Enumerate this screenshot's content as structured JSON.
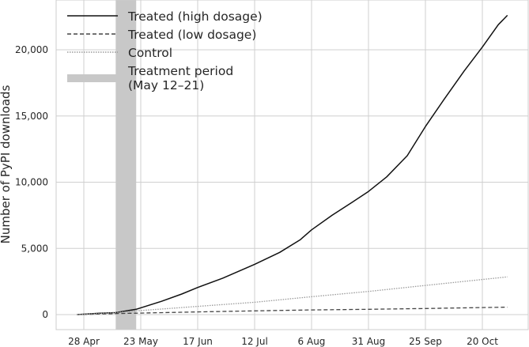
{
  "chart_data": {
    "type": "line",
    "ylabel": "Number of PyPI downloads",
    "xlabel": "",
    "x_ticks": [
      "28 Apr",
      "23 May",
      "17 Jun",
      "12 Jul",
      "6 Aug",
      "31 Aug",
      "25 Sep",
      "20 Oct"
    ],
    "y_ticks": [
      "0",
      "5,000",
      "10,000",
      "15,000",
      "20,000"
    ],
    "ylim": [
      -1100,
      23600
    ],
    "grid": true,
    "legend_position": "top-left",
    "treatment_period": {
      "label_line1": "Treatment period",
      "label_line2": "(May 12–21)",
      "start": "2023-05-12",
      "end": "2023-05-21",
      "color": "#c8c8c8"
    },
    "series": [
      {
        "name": "Treated (high dosage)",
        "style": "solid",
        "color": "#111111",
        "points": [
          [
            "2023-04-25",
            0
          ],
          [
            "2023-05-05",
            100
          ],
          [
            "2023-05-12",
            150
          ],
          [
            "2023-05-21",
            400
          ],
          [
            "2023-06-01",
            1000
          ],
          [
            "2023-06-10",
            1550
          ],
          [
            "2023-06-17",
            2050
          ],
          [
            "2023-06-28",
            2750
          ],
          [
            "2023-07-12",
            3800
          ],
          [
            "2023-07-23",
            4700
          ],
          [
            "2023-08-01",
            5650
          ],
          [
            "2023-08-06",
            6400
          ],
          [
            "2023-08-15",
            7500
          ],
          [
            "2023-08-24",
            8500
          ],
          [
            "2023-08-31",
            9300
          ],
          [
            "2023-09-08",
            10400
          ],
          [
            "2023-09-17",
            12000
          ],
          [
            "2023-09-25",
            14200
          ],
          [
            "2023-10-03",
            16200
          ],
          [
            "2023-10-12",
            18400
          ],
          [
            "2023-10-20",
            20200
          ],
          [
            "2023-10-27",
            21900
          ],
          [
            "2023-10-31",
            22600
          ]
        ]
      },
      {
        "name": "Treated (low dosage)",
        "style": "dashed",
        "color": "#444444",
        "points": [
          [
            "2023-04-25",
            0
          ],
          [
            "2023-05-12",
            80
          ],
          [
            "2023-05-21",
            110
          ],
          [
            "2023-06-17",
            200
          ],
          [
            "2023-07-12",
            280
          ],
          [
            "2023-08-06",
            350
          ],
          [
            "2023-08-31",
            400
          ],
          [
            "2023-09-25",
            460
          ],
          [
            "2023-10-20",
            530
          ],
          [
            "2023-10-31",
            560
          ]
        ]
      },
      {
        "name": "Control",
        "style": "dotted",
        "color": "#9a9a9a",
        "points": [
          [
            "2023-04-25",
            0
          ],
          [
            "2023-05-12",
            150
          ],
          [
            "2023-05-21",
            280
          ],
          [
            "2023-06-17",
            620
          ],
          [
            "2023-07-12",
            930
          ],
          [
            "2023-08-06",
            1350
          ],
          [
            "2023-08-31",
            1750
          ],
          [
            "2023-09-25",
            2200
          ],
          [
            "2023-10-20",
            2650
          ],
          [
            "2023-10-31",
            2850
          ]
        ]
      }
    ]
  }
}
